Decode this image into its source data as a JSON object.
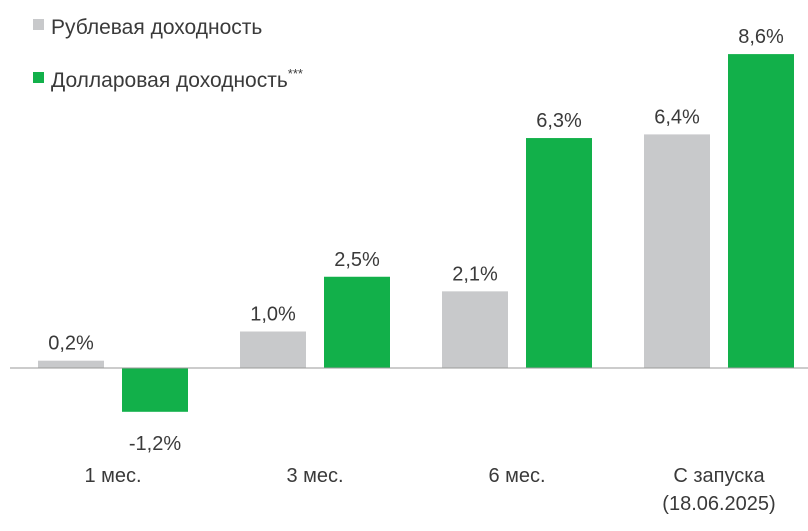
{
  "chart_data": {
    "type": "bar",
    "categories": [
      "1 мес.",
      "3 мес.",
      "6 мес.",
      "С запуска"
    ],
    "category_sublabels": [
      "",
      "",
      "",
      "(18.06.2025)"
    ],
    "series": [
      {
        "name": "Рублевая доходность",
        "color": "#c8c9cb",
        "values": [
          0.2,
          1.0,
          2.1,
          6.4
        ],
        "labels": [
          "0,2%",
          "1,0%",
          "2,1%",
          "6,4%"
        ]
      },
      {
        "name": "Долларовая доходность",
        "name_sup": "***",
        "color": "#12b04a",
        "values": [
          -1.2,
          2.5,
          6.3,
          8.6
        ],
        "labels": [
          "-1,2%",
          "2,5%",
          "6,3%",
          "8,6%"
        ]
      }
    ],
    "legend": "top-left",
    "grid": false,
    "ylim": [
      -1.2,
      8.6
    ]
  }
}
